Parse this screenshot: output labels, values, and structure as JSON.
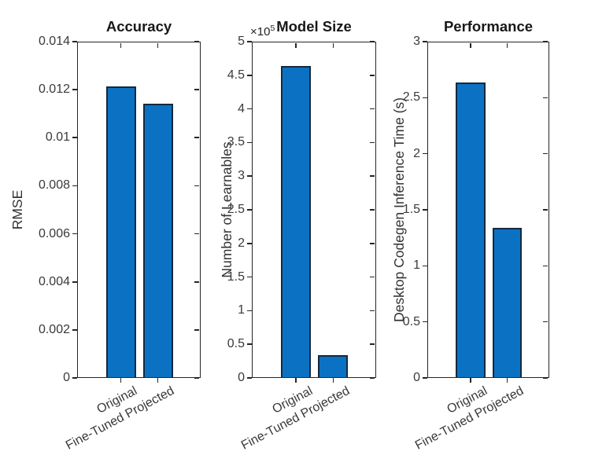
{
  "figure": {
    "background": "#ffffff",
    "axis_color": "#262626",
    "tick_label_color": "#3a3a3a",
    "bar_face_color": "#0b72c3",
    "bar_edge_color": "#13293f"
  },
  "chart_data": [
    {
      "type": "bar",
      "title": "Accuracy",
      "ylabel": "RMSE",
      "xlabel": "",
      "categories": [
        "Original",
        "Fine-Tuned Projected"
      ],
      "values": [
        0.0121,
        0.0114
      ],
      "ylim": [
        0,
        0.014
      ],
      "ytick_labels": [
        "0",
        "0.002",
        "0.004",
        "0.006",
        "0.008",
        "0.01",
        "0.012",
        "0.014"
      ],
      "grid": false,
      "legend": null
    },
    {
      "type": "bar",
      "title": "Model Size",
      "ylabel": "Number of Learnables",
      "xlabel": "",
      "categories": [
        "Original",
        "Fine-Tuned Projected"
      ],
      "values": [
        4.63,
        0.33
      ],
      "values_absolute": [
        463000,
        33000
      ],
      "y_multiplier_label": "×10⁵",
      "exponent_prefix": "×10",
      "exponent_power": "5",
      "ylim": [
        0,
        5
      ],
      "ytick_labels": [
        "0",
        "0.5",
        "1",
        "1.5",
        "2",
        "2.5",
        "3",
        "3.5",
        "4",
        "4.5",
        "5"
      ],
      "grid": false,
      "legend": null
    },
    {
      "type": "bar",
      "title": "Performance",
      "ylabel": "Desktop Codegen Inference Time (s)",
      "xlabel": "",
      "categories": [
        "Original",
        "Fine-Tuned Projected"
      ],
      "values": [
        2.63,
        1.33
      ],
      "ylim": [
        0,
        3
      ],
      "ytick_labels": [
        "0",
        "0.5",
        "1",
        "1.5",
        "2",
        "2.5",
        "3"
      ],
      "grid": false,
      "legend": null
    }
  ]
}
